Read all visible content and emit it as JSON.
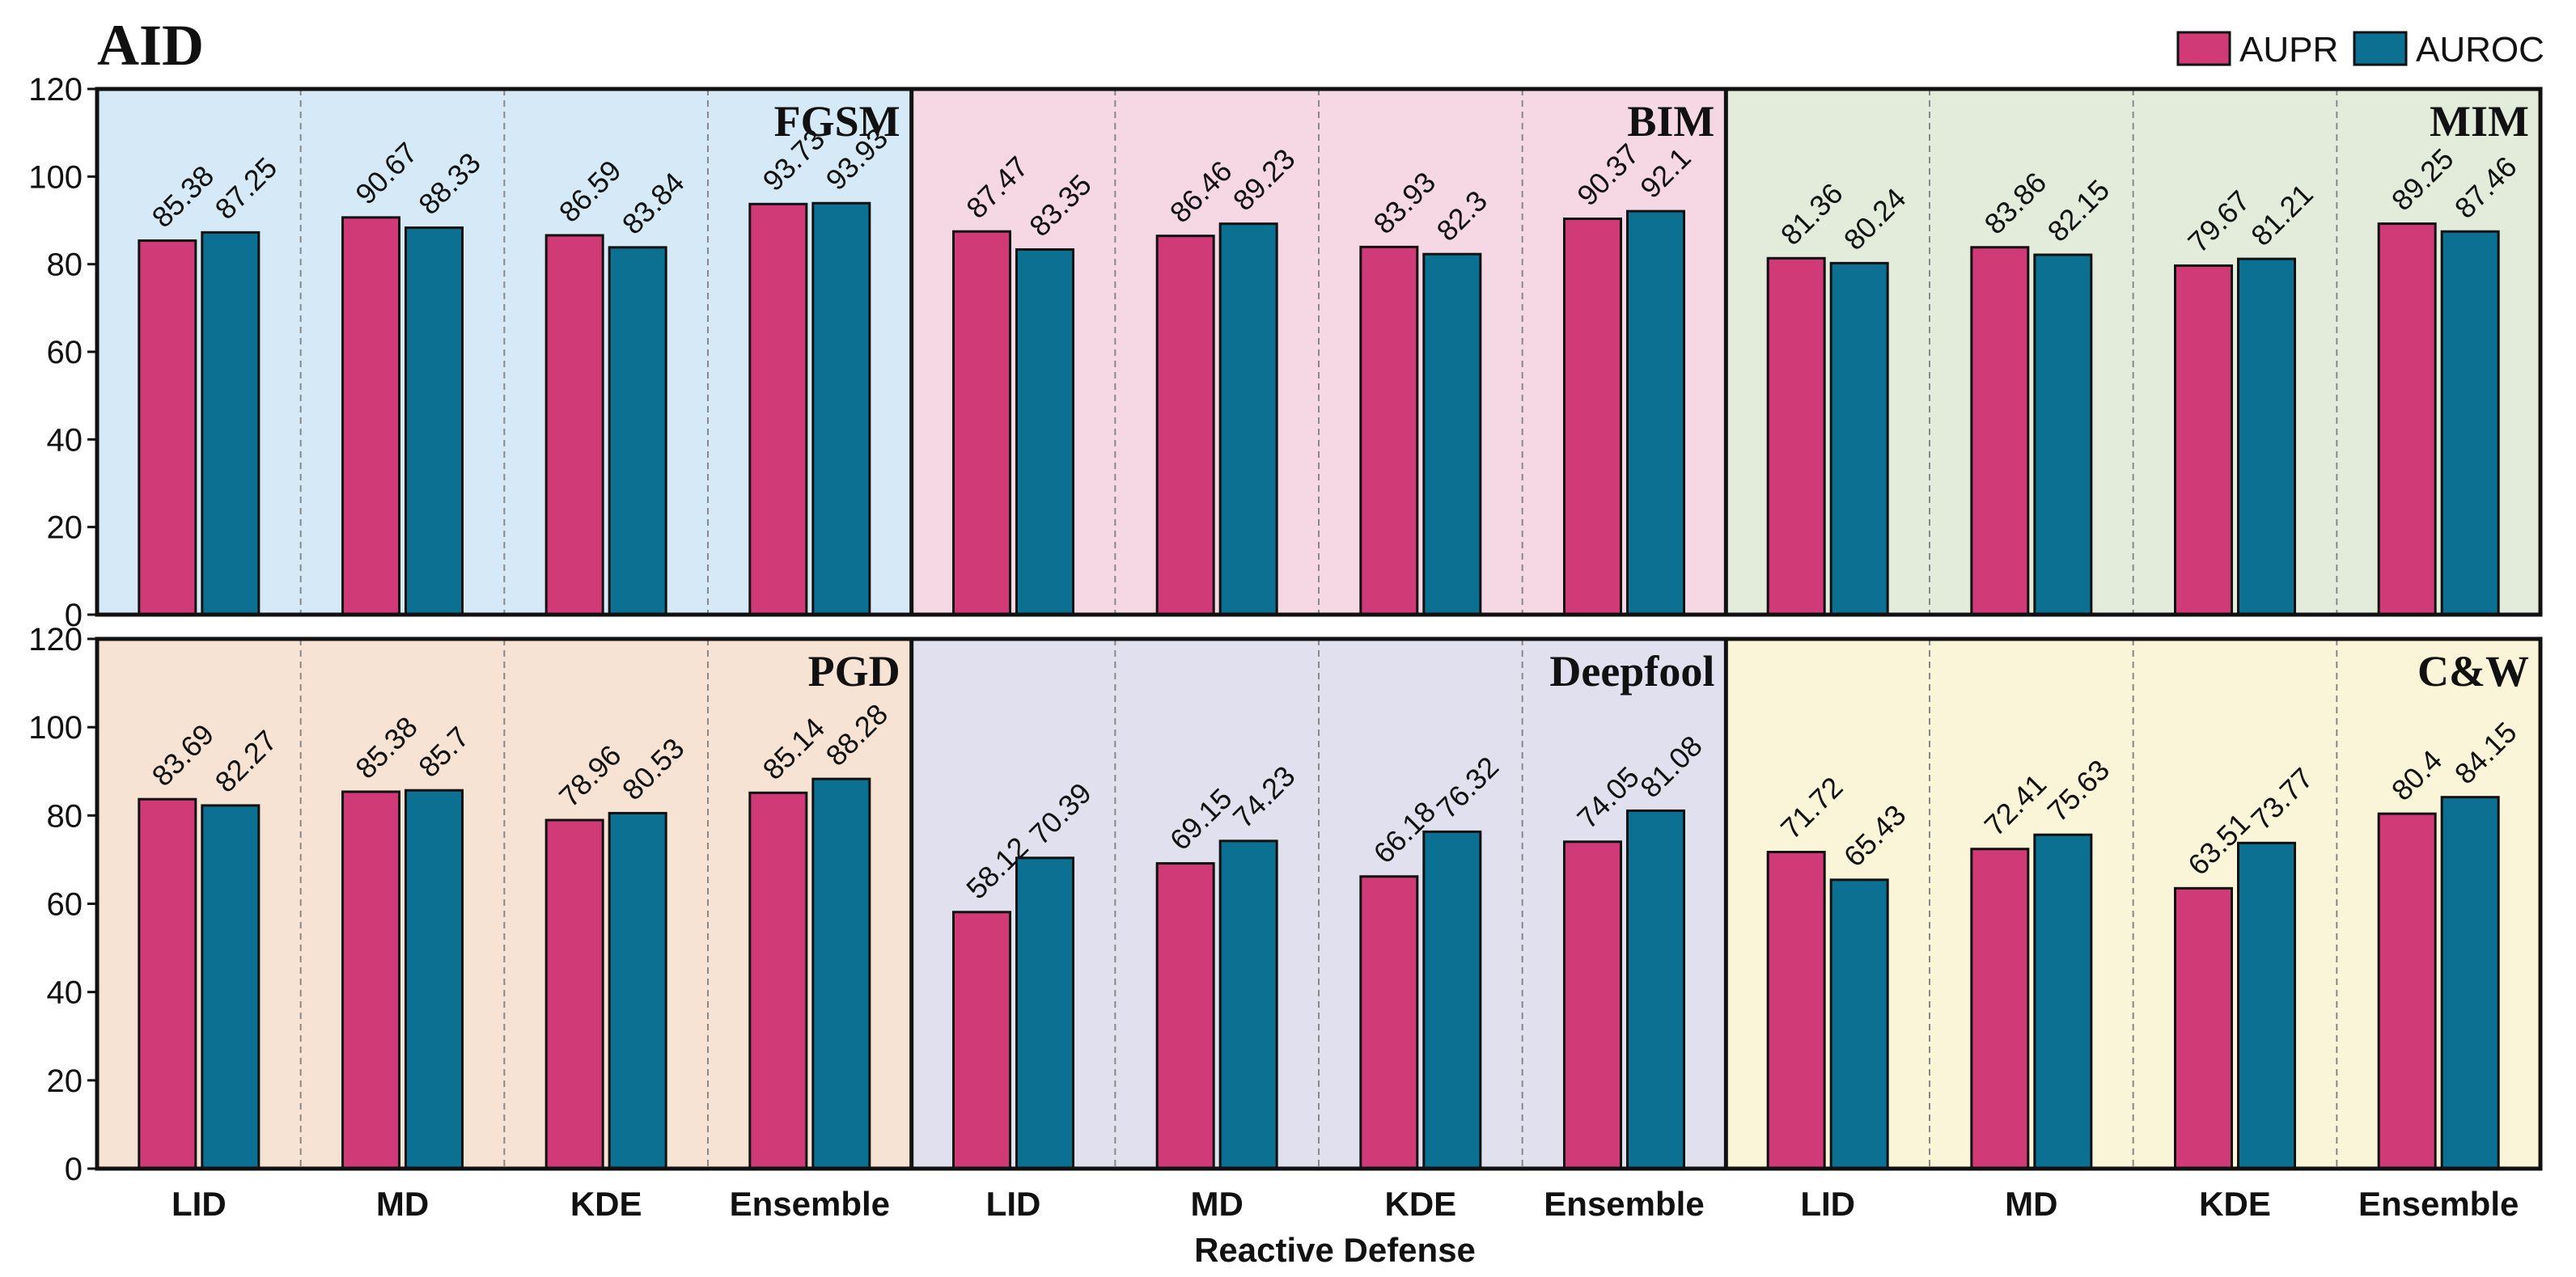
{
  "title": "AID",
  "xlabel": "Reactive Defense",
  "legend": [
    {
      "name": "AUPR",
      "color": "#cf3a77"
    },
    {
      "name": "AUROC",
      "color": "#0b7092"
    }
  ],
  "chart_data": {
    "type": "bar",
    "ylim": [
      0,
      120
    ],
    "yticks": [
      0,
      20,
      40,
      60,
      80,
      100,
      120
    ],
    "categories": [
      "LID",
      "MD",
      "KDE",
      "Ensemble"
    ],
    "series_names": [
      "AUPR",
      "AUROC"
    ],
    "panels": [
      {
        "name": "FGSM",
        "bg": "#d5eaf6",
        "aupr": [
          85.38,
          90.67,
          86.59,
          93.73
        ],
        "auroc": [
          87.25,
          88.33,
          83.84,
          93.93
        ]
      },
      {
        "name": "BIM",
        "bg": "#f5d8e4",
        "aupr": [
          87.47,
          86.46,
          83.93,
          90.37
        ],
        "auroc": [
          83.35,
          89.23,
          82.3,
          92.1
        ]
      },
      {
        "name": "MIM",
        "bg": "#e3ecdb",
        "aupr": [
          81.36,
          83.86,
          79.67,
          89.25
        ],
        "auroc": [
          80.24,
          82.15,
          81.21,
          87.46
        ]
      },
      {
        "name": "PGD",
        "bg": "#f6e3d3",
        "aupr": [
          83.69,
          85.38,
          78.96,
          85.14
        ],
        "auroc": [
          82.27,
          85.7,
          80.53,
          88.28
        ]
      },
      {
        "name": "Deepfool",
        "bg": "#e1e0ee",
        "aupr": [
          58.12,
          69.15,
          66.18,
          74.05
        ],
        "auroc": [
          70.39,
          74.23,
          76.32,
          81.08
        ]
      },
      {
        "name": "C&W",
        "bg": "#faf4d8",
        "aupr": [
          71.72,
          72.41,
          63.51,
          80.4
        ],
        "auroc": [
          65.43,
          75.63,
          73.77,
          84.15
        ]
      }
    ]
  }
}
